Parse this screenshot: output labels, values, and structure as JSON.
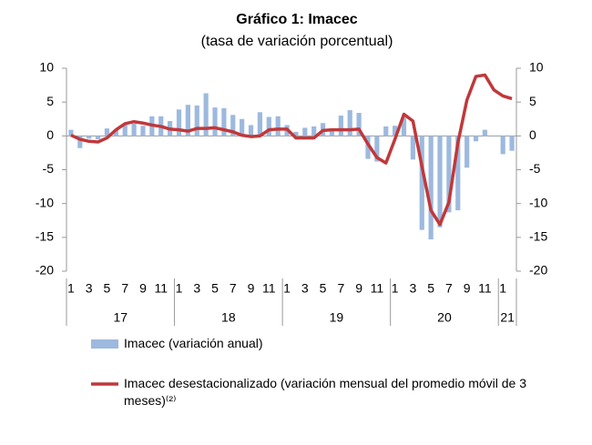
{
  "chart_data": {
    "type": "combo",
    "title": "Gráfico 1: Imacec",
    "subtitle": "(tasa de variación porcentual)",
    "categories": [
      "1",
      null,
      "3",
      null,
      "5",
      null,
      "7",
      null,
      "9",
      null,
      "11",
      null,
      "1",
      null,
      "3",
      null,
      "5",
      null,
      "7",
      null,
      "9",
      null,
      "11",
      null,
      "1",
      null,
      "3",
      null,
      "5",
      null,
      "7",
      null,
      "9",
      null,
      "11",
      null,
      "1",
      null,
      "3",
      null,
      "5",
      null,
      "7",
      null,
      "9",
      null,
      "11",
      null,
      "1",
      null
    ],
    "x_groups": [
      {
        "label": "17",
        "categories": 12
      },
      {
        "label": "18",
        "categories": 12
      },
      {
        "label": "19",
        "categories": 12
      },
      {
        "label": "20",
        "categories": 12
      },
      {
        "label": "21",
        "categories": 2
      }
    ],
    "series": [
      {
        "name": "Imacec (variación anual)",
        "type": "bar",
        "color": "#9db9de",
        "values": [
          0.9,
          -1.8,
          -0.4,
          -0.5,
          1.1,
          0.8,
          1.6,
          1.8,
          1.5,
          2.9,
          2.9,
          2.2,
          3.9,
          4.6,
          4.5,
          6.3,
          4.2,
          4.1,
          3.1,
          2.5,
          1.6,
          3.5,
          2.8,
          2.9,
          1.6,
          0.6,
          1.2,
          1.4,
          1.9,
          1.0,
          3.0,
          3.8,
          3.4,
          -3.4,
          -3.8,
          1.4,
          1.5,
          2.7,
          -3.5,
          -13.9,
          -15.3,
          -13.5,
          -11.3,
          -11.0,
          -4.7,
          -0.8,
          0.9,
          -0.1,
          -2.7,
          -2.2
        ]
      },
      {
        "name": "Imacec desestacionalizado (variación mensual del promedio móvil de 3 meses)⁽²⁾",
        "type": "line",
        "axis": "y2",
        "color": "#c0383a",
        "values": [
          0.1,
          -0.5,
          -0.8,
          -0.9,
          -0.3,
          0.9,
          1.8,
          2.1,
          1.9,
          1.6,
          1.4,
          1.0,
          0.9,
          0.7,
          1.1,
          1.1,
          1.2,
          0.9,
          0.6,
          0.1,
          -0.1,
          0.0,
          0.9,
          1.0,
          1.0,
          -0.3,
          -0.3,
          -0.3,
          0.8,
          0.9,
          0.9,
          0.9,
          1.0,
          -1.2,
          -3.2,
          -4.0,
          -0.5,
          3.2,
          2.2,
          -4.5,
          -11.0,
          -13.1,
          -9.8,
          -1.0,
          5.3,
          8.8,
          9.0,
          6.8,
          5.9,
          5.5
        ]
      }
    ],
    "ylim": [
      -20,
      10
    ],
    "yticks": [
      10,
      5,
      0,
      -5,
      -10,
      -15,
      -20
    ],
    "y2lim": [
      -20,
      10
    ],
    "y2ticks": [
      10,
      5,
      0,
      -5,
      -10,
      -15,
      -20
    ],
    "grid": false
  }
}
